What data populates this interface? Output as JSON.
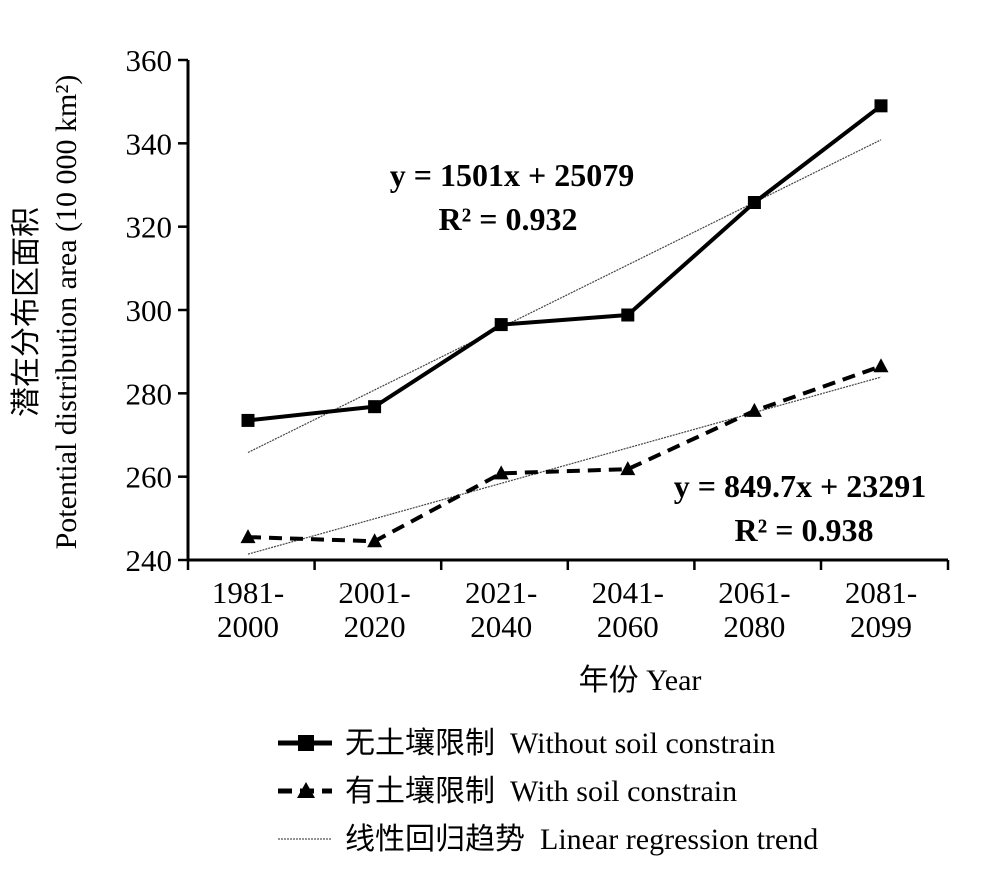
{
  "chart_data": {
    "type": "line",
    "categories": [
      {
        "line1": "1981-",
        "line2": "2000"
      },
      {
        "line1": "2001-",
        "line2": "2020"
      },
      {
        "line1": "2021-",
        "line2": "2040"
      },
      {
        "line1": "2041-",
        "line2": "2060"
      },
      {
        "line1": "2061-",
        "line2": "2080"
      },
      {
        "line1": "2081-",
        "line2": "2099"
      }
    ],
    "series": [
      {
        "name": "无土壤限制  Without soil constrain",
        "marker": "square",
        "style": "solid",
        "values": [
          273.5,
          276.8,
          296.5,
          298.8,
          325.8,
          349
        ]
      },
      {
        "name": "有土壤限制  With soil constrain",
        "marker": "triangle",
        "style": "dashed",
        "values": [
          245.5,
          244.5,
          260.8,
          261.8,
          275.8,
          286.5
        ]
      }
    ],
    "trends": [
      {
        "name": "线性回归趋势  Linear regression trend",
        "slope": 15.01,
        "intercept": 250.79,
        "equation": "y = 1501x + 25079",
        "r2": "R² = 0.932"
      },
      {
        "slope": 8.497,
        "intercept": 232.91,
        "equation": "y = 849.7x + 23291",
        "r2": "R² = 0.938"
      }
    ],
    "ylabel_cn": "潜在分布区面积",
    "ylabel_en": "Potential distribution area (10 000 km²)",
    "xlabel": "年份 Year",
    "ylim": [
      240,
      360
    ],
    "yticks": [
      240,
      260,
      280,
      300,
      320,
      340,
      360
    ],
    "grid": false,
    "legend_position": "bottom"
  }
}
